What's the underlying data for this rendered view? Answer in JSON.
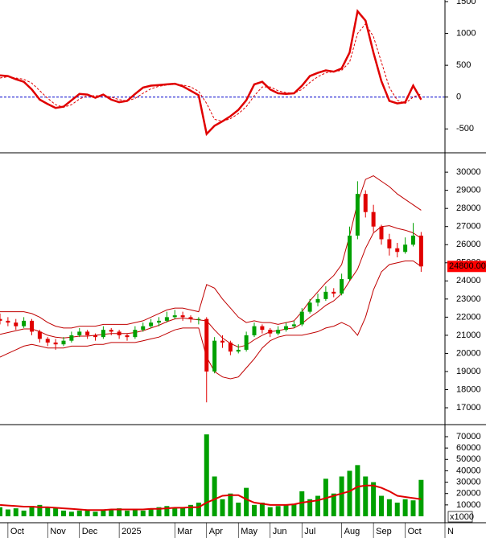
{
  "chart_data": {
    "type": "stock",
    "x": [
      0,
      1,
      2,
      3,
      4,
      5,
      6,
      7,
      8,
      9,
      10,
      11,
      12,
      13,
      14,
      15,
      16,
      17,
      18,
      19,
      20,
      21,
      22,
      23,
      24,
      25,
      26,
      27,
      28,
      29,
      30,
      31,
      32,
      33,
      34,
      35,
      36,
      37,
      38,
      39,
      40,
      41,
      42,
      43,
      44,
      45,
      46,
      47,
      48,
      49,
      50,
      51,
      52,
      53
    ],
    "xlim": [
      0,
      56
    ],
    "xticks": [
      {
        "value": 1,
        "label": "Oct"
      },
      {
        "value": 6,
        "label": "Nov"
      },
      {
        "value": 10,
        "label": "Dec"
      },
      {
        "value": 15,
        "label": "2025"
      },
      {
        "value": 22,
        "label": "Mar"
      },
      {
        "value": 26,
        "label": "Apr"
      },
      {
        "value": 30,
        "label": "May"
      },
      {
        "value": 34,
        "label": "Jun"
      },
      {
        "value": 38,
        "label": "Jul"
      },
      {
        "value": 43,
        "label": "Aug"
      },
      {
        "value": 47,
        "label": "Sep"
      },
      {
        "value": 51,
        "label": "Oct"
      },
      {
        "value": 56,
        "label": "N"
      }
    ],
    "panels": [
      {
        "type": "line",
        "ylim": [
          -875,
          1525
        ],
        "yticks": [
          -500,
          0,
          500,
          1000,
          1500
        ],
        "hline": 0,
        "hline_color": "#0000cc",
        "series": [
          {
            "color": "#e00000",
            "style": "solid",
            "width": 2.5,
            "values": [
              340,
              330,
              280,
              240,
              120,
              -40,
              -110,
              -170,
              -150,
              -50,
              50,
              40,
              -10,
              40,
              -40,
              -80,
              -60,
              50,
              150,
              180,
              190,
              200,
              210,
              170,
              100,
              30,
              -580,
              -450,
              -380,
              -300,
              -200,
              -50,
              200,
              240,
              120,
              60,
              50,
              60,
              180,
              330,
              380,
              420,
              400,
              450,
              700,
              1350,
              1200,
              700,
              250,
              -60,
              -100,
              -80,
              180,
              -40
            ]
          },
          {
            "color": "#e00000",
            "style": "dashed",
            "width": 1,
            "values": [
              300,
              320,
              300,
              280,
              220,
              100,
              -20,
              -120,
              -160,
              -120,
              -30,
              20,
              20,
              20,
              0,
              -40,
              -60,
              -20,
              60,
              130,
              170,
              190,
              200,
              190,
              160,
              90,
              -100,
              -350,
              -380,
              -340,
              -260,
              -150,
              20,
              160,
              160,
              100,
              70,
              60,
              120,
              230,
              320,
              380,
              400,
              420,
              550,
              1000,
              1150,
              950,
              550,
              150,
              -50,
              -100,
              0,
              50
            ]
          }
        ]
      },
      {
        "type": "candlestick",
        "ylim": [
          16070,
          31070
        ],
        "yticks": [
          17000,
          18000,
          19000,
          20000,
          21000,
          22000,
          23000,
          24000,
          25000,
          26000,
          27000,
          28000,
          29000,
          30000
        ],
        "up_color": "#00a000",
        "down_color": "#e00000",
        "last_price": {
          "value": 24800,
          "label": "24800.00"
        },
        "last_color": "#ff0000",
        "ohlc": [
          [
            21900,
            22200,
            21600,
            21800
          ],
          [
            21800,
            22000,
            21500,
            21700
          ],
          [
            21700,
            21900,
            21300,
            21500
          ],
          [
            21500,
            22000,
            21400,
            21800
          ],
          [
            21800,
            21900,
            21000,
            21200
          ],
          [
            21200,
            21300,
            20600,
            20800
          ],
          [
            20800,
            20900,
            20400,
            20600
          ],
          [
            20600,
            20800,
            20200,
            20500
          ],
          [
            20500,
            20900,
            20400,
            20700
          ],
          [
            20700,
            21200,
            20600,
            21000
          ],
          [
            21000,
            21400,
            20900,
            21200
          ],
          [
            21200,
            21300,
            20800,
            21000
          ],
          [
            21000,
            21100,
            20700,
            20900
          ],
          [
            20900,
            21500,
            20800,
            21300
          ],
          [
            21300,
            21400,
            21000,
            21200
          ],
          [
            21200,
            21300,
            20800,
            21000
          ],
          [
            21000,
            21100,
            20700,
            20900
          ],
          [
            20900,
            21500,
            20800,
            21300
          ],
          [
            21300,
            21700,
            21200,
            21500
          ],
          [
            21500,
            21900,
            21400,
            21700
          ],
          [
            21700,
            22000,
            21500,
            21800
          ],
          [
            21800,
            22300,
            21700,
            22000
          ],
          [
            22000,
            22400,
            21900,
            22100
          ],
          [
            22100,
            22300,
            21800,
            22000
          ],
          [
            22000,
            22100,
            21700,
            21900
          ],
          [
            21900,
            22000,
            21600,
            21900
          ],
          [
            21900,
            22000,
            17300,
            19000
          ],
          [
            19000,
            20900,
            18900,
            20700
          ],
          [
            20700,
            21000,
            20300,
            20600
          ],
          [
            20600,
            20700,
            19900,
            20100
          ],
          [
            20100,
            20500,
            20000,
            20200
          ],
          [
            20200,
            21200,
            20100,
            21000
          ],
          [
            21000,
            21700,
            20900,
            21500
          ],
          [
            21500,
            21600,
            21100,
            21300
          ],
          [
            21300,
            21400,
            20900,
            21100
          ],
          [
            21100,
            21500,
            21000,
            21300
          ],
          [
            21300,
            21700,
            21200,
            21500
          ],
          [
            21500,
            21800,
            21400,
            21600
          ],
          [
            21600,
            22500,
            21500,
            22300
          ],
          [
            22300,
            23000,
            22200,
            22800
          ],
          [
            22800,
            23300,
            22600,
            23000
          ],
          [
            23000,
            23700,
            22900,
            23400
          ],
          [
            23400,
            23600,
            23100,
            23300
          ],
          [
            23300,
            24400,
            23200,
            24100
          ],
          [
            24100,
            27000,
            24000,
            26500
          ],
          [
            26500,
            29500,
            26300,
            28800
          ],
          [
            28800,
            29000,
            27500,
            27800
          ],
          [
            27800,
            28200,
            26700,
            27000
          ],
          [
            27000,
            27100,
            26000,
            26300
          ],
          [
            26300,
            26600,
            25400,
            25800
          ],
          [
            25800,
            26100,
            25300,
            25600
          ],
          [
            25600,
            26400,
            25500,
            26000
          ],
          [
            26000,
            27200,
            25900,
            26500
          ],
          [
            26500,
            26700,
            24500,
            24800
          ]
        ],
        "series": [
          {
            "color": "#c00000",
            "values": [
              22300,
              22300,
              22300,
              22300,
              22200,
              22000,
              21700,
              21500,
              21400,
              21400,
              21500,
              21500,
              21500,
              21600,
              21600,
              21600,
              21600,
              21700,
              21800,
              22000,
              22200,
              22400,
              22500,
              22500,
              22400,
              22300,
              23800,
              23600,
              23000,
              22500,
              22000,
              21700,
              21800,
              21700,
              21700,
              21600,
              21700,
              21800,
              22300,
              22900,
              23400,
              23900,
              24300,
              24900,
              26500,
              28300,
              29600,
              29800,
              29500,
              29200,
              28800,
              28500,
              28200,
              27900
            ]
          },
          {
            "color": "#c00000",
            "values": [
              21050,
              21150,
              21250,
              21350,
              21350,
              21200,
              21000,
              20900,
              20850,
              20900,
              20950,
              20950,
              21000,
              21050,
              21100,
              21100,
              21100,
              21150,
              21250,
              21400,
              21550,
              21750,
              21900,
              21950,
              21900,
              21850,
              21800,
              21300,
              20850,
              20550,
              20350,
              20450,
              20750,
              21000,
              21200,
              21250,
              21350,
              21400,
              21650,
              22000,
              22300,
              22650,
              22900,
              23300,
              24000,
              24650,
              25800,
              26650,
              27000,
              27050,
              26900,
              26800,
              26650,
              26350
            ]
          },
          {
            "color": "#c00000",
            "values": [
              19800,
              20000,
              20200,
              20400,
              20500,
              20400,
              20300,
              20300,
              20300,
              20400,
              20400,
              20400,
              20500,
              20500,
              20600,
              20600,
              20600,
              20600,
              20700,
              20800,
              20900,
              21100,
              21300,
              21400,
              21400,
              21400,
              19800,
              19000,
              18700,
              18600,
              18700,
              19200,
              19700,
              20300,
              20700,
              20900,
              21000,
              21000,
              21000,
              21100,
              21200,
              21400,
              21500,
              21700,
              21500,
              21000,
              22000,
              23500,
              24500,
              24900,
              25000,
              25100,
              25100,
              24800
            ]
          }
        ]
      },
      {
        "type": "bar",
        "ylim": [
          -5660,
          80600
        ],
        "yticks": [
          10000,
          20000,
          30000,
          40000,
          50000,
          60000,
          70000
        ],
        "unit_label": "x1000",
        "color": "#00a000",
        "values": [
          8000,
          6000,
          7000,
          5000,
          9000,
          10000,
          8000,
          7000,
          5000,
          4000,
          5000,
          6000,
          4000,
          5000,
          6000,
          7000,
          5000,
          6000,
          5000,
          7000,
          8000,
          9000,
          7000,
          8000,
          10000,
          12000,
          72000,
          35000,
          15000,
          20000,
          12000,
          25000,
          10000,
          12000,
          8000,
          9000,
          10000,
          11000,
          22000,
          15000,
          18000,
          33000,
          20000,
          35000,
          40000,
          45000,
          35000,
          30000,
          18000,
          15000,
          12000,
          15000,
          14000,
          32000
        ],
        "series": [
          {
            "color": "#e00000",
            "values": [
              10000,
              9500,
              9000,
              8500,
              8500,
              8000,
              8000,
              7500,
              7000,
              6500,
              6000,
              5500,
              5500,
              5500,
              6000,
              6000,
              6000,
              6000,
              6000,
              6500,
              6500,
              7000,
              7500,
              7500,
              8000,
              8000,
              12000,
              15000,
              18000,
              18500,
              18500,
              15000,
              12000,
              11000,
              10000,
              10000,
              10000,
              10500,
              12000,
              13000,
              14000,
              16000,
              18000,
              20000,
              22000,
              26000,
              27000,
              27000,
              25000,
              22000,
              18000,
              17000,
              16000,
              15000
            ]
          }
        ]
      }
    ]
  }
}
